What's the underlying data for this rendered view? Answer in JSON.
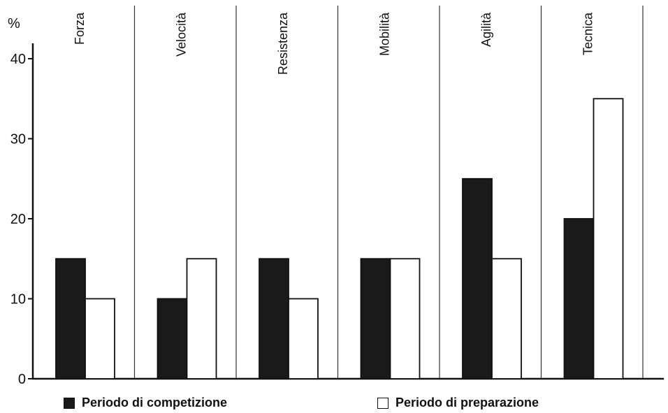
{
  "chart_data": {
    "type": "bar",
    "title": "",
    "xlabel": "",
    "ylabel": "%",
    "ylim": [
      0,
      40
    ],
    "yticks": [
      0,
      10,
      20,
      30,
      40
    ],
    "categories": [
      "Forza",
      "Velocità",
      "Resistenza",
      "Mobilità",
      "Agilità",
      "Tecnica"
    ],
    "series": [
      {
        "name": "Periodo di competizione",
        "color": "#1a1a1a",
        "values": [
          15,
          10,
          15,
          15,
          25,
          20
        ]
      },
      {
        "name": "Periodo di preparazione",
        "color": "#ffffff",
        "values": [
          10,
          15,
          10,
          15,
          15,
          35
        ]
      }
    ],
    "grid": false,
    "legend_position": "bottom"
  }
}
